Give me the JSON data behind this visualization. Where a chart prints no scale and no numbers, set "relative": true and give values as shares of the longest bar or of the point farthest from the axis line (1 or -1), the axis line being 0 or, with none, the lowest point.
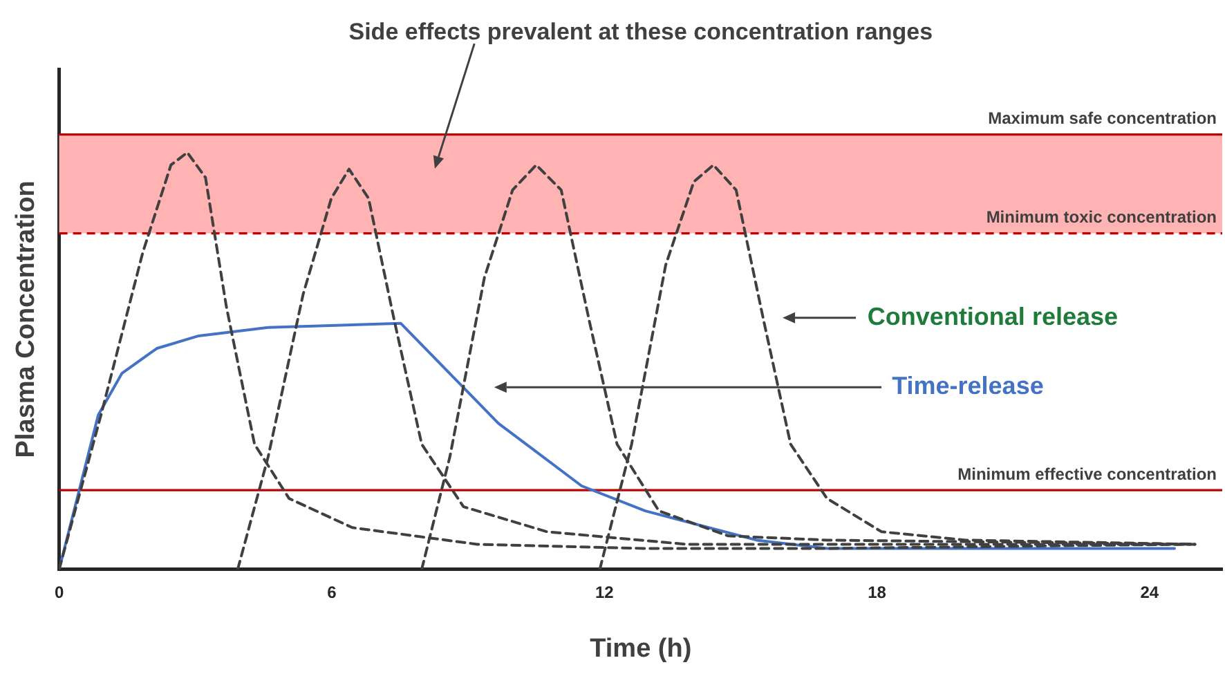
{
  "chart_data": {
    "type": "line",
    "relative": true,
    "xlabel": "Time (h)",
    "ylabel": "Plasma Concentration",
    "xlim": [
      0,
      25.6
    ],
    "xticks": [
      0,
      6,
      12,
      18,
      24
    ],
    "grid": false,
    "legend": false,
    "marker": "none",
    "series": [
      {
        "color": "#404040",
        "line_style": "dashed",
        "x": [
          0,
          0.92,
          1.84,
          2.46,
          2.82,
          3.22,
          3.68,
          4.3,
          5.06,
          6.45,
          9.2,
          12.9,
          16.9,
          24.9
        ],
        "values": [
          0,
          0.37,
          0.76,
          0.97,
          1.0,
          0.94,
          0.63,
          0.3,
          0.17,
          0.1,
          0.06,
          0.05,
          0.05,
          0.06
        ]
      },
      {
        "color": "#404040",
        "line_style": "dashed",
        "x": [
          3.93,
          4.6,
          5.37,
          5.99,
          6.38,
          6.81,
          7.37,
          7.98,
          8.9,
          10.74,
          13.8,
          25.0
        ],
        "values": [
          0,
          0.27,
          0.66,
          0.89,
          0.96,
          0.89,
          0.6,
          0.3,
          0.15,
          0.09,
          0.06,
          0.06
        ]
      },
      {
        "color": "#404040",
        "line_style": "dashed",
        "x": [
          7.98,
          8.6,
          9.36,
          9.98,
          10.5,
          11.05,
          11.66,
          12.28,
          13.2,
          14.73,
          16.9,
          25.0
        ],
        "values": [
          0,
          0.27,
          0.7,
          0.91,
          0.97,
          0.91,
          0.6,
          0.3,
          0.14,
          0.08,
          0.07,
          0.06
        ]
      },
      {
        "color": "#404040",
        "line_style": "dashed",
        "x": [
          11.9,
          12.6,
          13.35,
          13.97,
          14.4,
          14.9,
          15.5,
          16.1,
          16.9,
          18.1,
          19.95,
          25.0
        ],
        "values": [
          0,
          0.3,
          0.73,
          0.93,
          0.97,
          0.91,
          0.6,
          0.3,
          0.17,
          0.09,
          0.07,
          0.06
        ]
      },
      {
        "color": "#4472c4",
        "line_style": "solid",
        "x": [
          0,
          0.86,
          1.38,
          2.15,
          3.07,
          4.6,
          7.52,
          9.67,
          11.5,
          12.9,
          15.35,
          16.9,
          24.55
        ],
        "values": [
          0,
          0.37,
          0.47,
          0.53,
          0.56,
          0.58,
          0.59,
          0.35,
          0.2,
          0.14,
          0.07,
          0.05,
          0.05
        ]
      }
    ],
    "bands": [
      {
        "axis": "y",
        "from": 0.806,
        "to": 1.043,
        "color": "#ffb3b3"
      }
    ],
    "ref_lines": [
      {
        "axis": "y",
        "value": 1.043,
        "label": "Maximum safe concentration",
        "color": "#c00000",
        "line_style": "solid"
      },
      {
        "axis": "y",
        "value": 0.806,
        "label": "Minimum toxic concentration",
        "color": "#c00000",
        "line_style": "dashed"
      },
      {
        "axis": "y",
        "value": 0.19,
        "label": "Minimum effective concentration",
        "color": "#c00000",
        "line_style": "solid"
      }
    ],
    "annotations": [
      "Side effects prevalent at these concentration ranges",
      "Conventional release",
      "Time-release"
    ]
  }
}
